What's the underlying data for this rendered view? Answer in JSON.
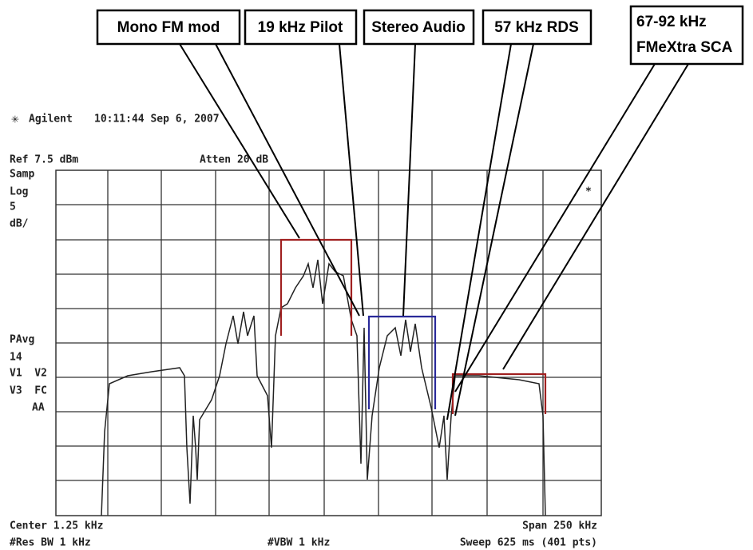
{
  "callouts": [
    "Mono FM mod",
    "19 kHz Pilot",
    "Stereo Audio",
    "57 kHz RDS",
    "67-92 kHz",
    "FMeXtra SCA"
  ],
  "header": {
    "brand": "Agilent",
    "timestamp": "10:11:44  Sep 6, 2007"
  },
  "settings": {
    "ref": "Ref 7.5 dBm",
    "atten": "Atten 20 dB",
    "left": [
      "Samp",
      "Log",
      "5",
      "dB/"
    ],
    "left2": [
      "PAvg",
      "14",
      "V1  V2",
      "V3  FC",
      "AA"
    ],
    "marker": "*"
  },
  "footer": {
    "center": "Center 1.25 kHz",
    "rbw": "#Res BW 1 kHz",
    "vbw": "#VBW 1 kHz",
    "span": "Span 250 kHz",
    "sweep": "Sweep 625 ms (401 pts)"
  }
}
